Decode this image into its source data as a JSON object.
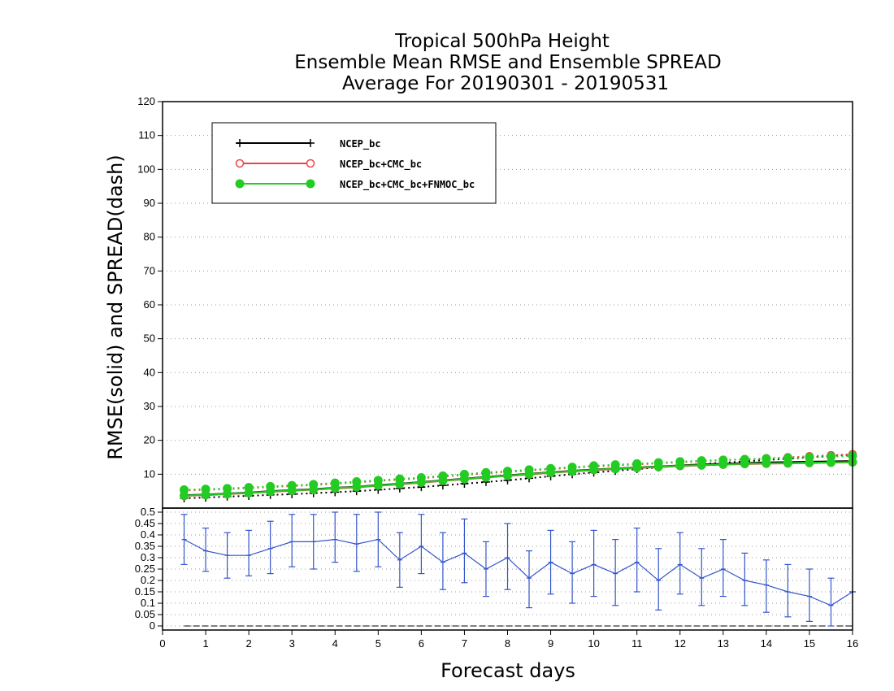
{
  "chart_data": [
    {
      "type": "line",
      "title": [
        "Tropical 500hPa Height",
        "Ensemble Mean RMSE and Ensemble SPREAD",
        "Average For 20190301 - 20190531"
      ],
      "xlabel": "Forecast days",
      "ylabel": "RMSE(solid) and SPREAD(dash)",
      "xlim": [
        0,
        16
      ],
      "ylim": [
        0,
        120
      ],
      "xticks": [
        0,
        1,
        2,
        3,
        4,
        5,
        6,
        7,
        8,
        9,
        10,
        11,
        12,
        13,
        14,
        15,
        16
      ],
      "yticks": [
        10,
        20,
        30,
        40,
        50,
        60,
        70,
        80,
        90,
        100,
        110,
        120
      ],
      "grid": true,
      "legend_position": "top-left",
      "x": [
        0.5,
        1,
        1.5,
        2,
        2.5,
        3,
        3.5,
        4,
        4.5,
        5,
        5.5,
        6,
        6.5,
        7,
        7.5,
        8,
        8.5,
        9,
        9.5,
        10,
        10.5,
        11,
        11.5,
        12,
        12.5,
        13,
        13.5,
        14,
        14.5,
        15,
        15.5,
        16
      ],
      "series": [
        {
          "name": "NCEP_bc",
          "color": "#000000",
          "marker": "plus",
          "rmse": [
            3.8,
            4.0,
            4.3,
            4.6,
            5.0,
            5.3,
            5.6,
            6.0,
            6.3,
            6.8,
            7.2,
            7.7,
            8.2,
            8.7,
            9.2,
            9.7,
            10.1,
            10.6,
            11.0,
            11.4,
            11.7,
            12.0,
            12.3,
            12.6,
            12.9,
            13.1,
            13.3,
            13.5,
            13.6,
            13.7,
            13.8,
            13.9
          ],
          "spread": [
            2.9,
            3.1,
            3.4,
            3.6,
            3.9,
            4.1,
            4.4,
            4.7,
            5.0,
            5.4,
            5.8,
            6.2,
            6.7,
            7.2,
            7.7,
            8.2,
            8.8,
            9.4,
            10.0,
            10.5,
            11.0,
            11.5,
            12.0,
            12.5,
            13.0,
            13.4,
            13.8,
            14.2,
            14.6,
            15.0,
            15.4,
            15.8
          ]
        },
        {
          "name": "NCEP_bc+CMC_bc",
          "color": "#ee4444",
          "marker": "open-circle",
          "rmse": [
            3.6,
            3.8,
            4.1,
            4.4,
            4.8,
            5.1,
            5.4,
            5.8,
            6.1,
            6.6,
            7.0,
            7.5,
            8.0,
            8.5,
            9.0,
            9.5,
            9.9,
            10.4,
            10.8,
            11.2,
            11.5,
            11.8,
            12.1,
            12.4,
            12.6,
            12.8,
            13.0,
            13.1,
            13.2,
            13.3,
            13.4,
            13.5
          ],
          "spread": [
            5.2,
            5.4,
            5.6,
            5.9,
            6.2,
            6.5,
            6.8,
            7.2,
            7.6,
            8.0,
            8.4,
            8.8,
            9.3,
            9.8,
            10.3,
            10.7,
            11.1,
            11.5,
            11.9,
            12.3,
            12.6,
            12.9,
            13.2,
            13.5,
            13.8,
            14.1,
            14.4,
            14.7,
            15.0,
            15.3,
            15.6,
            15.9
          ]
        },
        {
          "name": "NCEP_bc+CMC_bc+FNMOC_bc",
          "color": "#22cc22",
          "marker": "filled-circle",
          "rmse": [
            3.7,
            3.9,
            4.2,
            4.5,
            4.9,
            5.2,
            5.5,
            5.9,
            6.2,
            6.7,
            7.1,
            7.6,
            8.1,
            8.6,
            9.1,
            9.6,
            10.0,
            10.5,
            10.9,
            11.3,
            11.6,
            11.9,
            12.2,
            12.5,
            12.7,
            12.9,
            13.1,
            13.2,
            13.3,
            13.4,
            13.5,
            13.6
          ],
          "spread": [
            5.4,
            5.6,
            5.8,
            6.1,
            6.4,
            6.7,
            7.0,
            7.4,
            7.8,
            8.2,
            8.6,
            9.0,
            9.5,
            10.0,
            10.5,
            10.9,
            11.3,
            11.7,
            12.1,
            12.5,
            12.8,
            13.1,
            13.4,
            13.7,
            14.0,
            14.2,
            14.4,
            14.6,
            14.8,
            15.0,
            15.2,
            15.4
          ]
        }
      ]
    },
    {
      "type": "line",
      "xlim": [
        0,
        16
      ],
      "ylim": [
        0,
        0.5
      ],
      "yticks": [
        0,
        0.05,
        0.1,
        0.15,
        0.2,
        0.25,
        0.3,
        0.35,
        0.4,
        0.45,
        0.5
      ],
      "ytick_labels": [
        "0",
        "0.05",
        "0.1",
        "0.15",
        "0.2",
        "0.25",
        "0.3",
        "0.35",
        "0.4",
        "0.45",
        "0.5"
      ],
      "grid": true,
      "color": "#3355cc",
      "x": [
        0.5,
        1,
        1.5,
        2,
        2.5,
        3,
        3.5,
        4,
        4.5,
        5,
        5.5,
        6,
        6.5,
        7,
        7.5,
        8,
        8.5,
        9,
        9.5,
        10,
        10.5,
        11,
        11.5,
        12,
        12.5,
        13,
        13.5,
        14,
        14.5,
        15,
        15.5,
        16
      ],
      "values": [
        0.38,
        0.33,
        0.31,
        0.31,
        0.34,
        0.37,
        0.37,
        0.38,
        0.36,
        0.38,
        0.29,
        0.35,
        0.28,
        0.32,
        0.25,
        0.3,
        0.21,
        0.28,
        0.23,
        0.27,
        0.23,
        0.28,
        0.2,
        0.27,
        0.21,
        0.25,
        0.2,
        0.18,
        0.15,
        0.13,
        0.09,
        0.15
      ],
      "err_low": [
        0.27,
        0.24,
        0.21,
        0.22,
        0.23,
        0.26,
        0.25,
        0.28,
        0.24,
        0.26,
        0.17,
        0.23,
        0.16,
        0.19,
        0.13,
        0.16,
        0.08,
        0.14,
        0.1,
        0.13,
        0.09,
        0.15,
        0.07,
        0.14,
        0.09,
        0.13,
        0.09,
        0.06,
        0.04,
        0.02,
        0.0,
        0.15
      ],
      "err_high": [
        0.49,
        0.43,
        0.41,
        0.42,
        0.46,
        0.49,
        0.49,
        0.5,
        0.49,
        0.5,
        0.41,
        0.49,
        0.41,
        0.47,
        0.37,
        0.45,
        0.33,
        0.42,
        0.37,
        0.42,
        0.38,
        0.43,
        0.34,
        0.41,
        0.34,
        0.38,
        0.32,
        0.29,
        0.27,
        0.25,
        0.21,
        0.15
      ],
      "reference_line": 0.0
    }
  ]
}
